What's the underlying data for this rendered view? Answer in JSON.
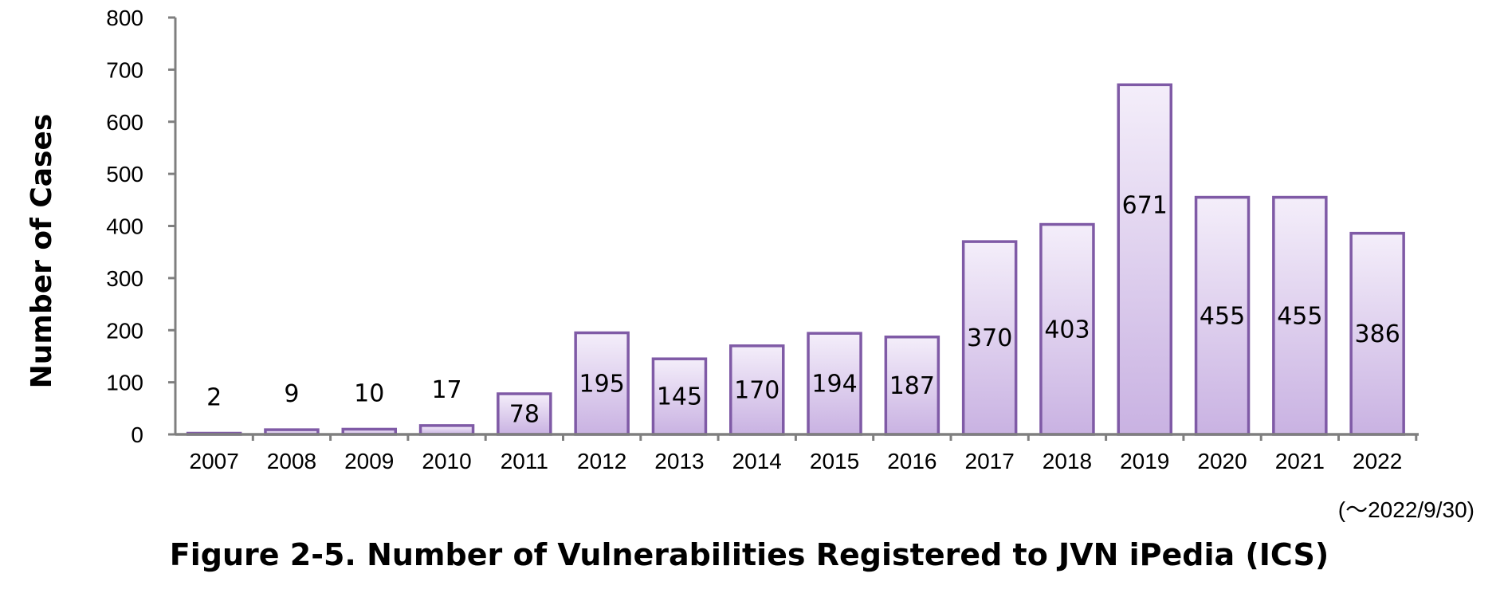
{
  "chart_data": {
    "type": "bar",
    "categories": [
      "2007",
      "2008",
      "2009",
      "2010",
      "2011",
      "2012",
      "2013",
      "2014",
      "2015",
      "2016",
      "2017",
      "2018",
      "2019",
      "2020",
      "2021",
      "2022"
    ],
    "values": [
      2,
      9,
      10,
      17,
      78,
      195,
      145,
      170,
      194,
      187,
      370,
      403,
      671,
      455,
      455,
      386
    ],
    "data_labels": [
      "2",
      "9",
      "10",
      "17",
      "78",
      "195",
      "145",
      "170",
      "194",
      "187",
      "370",
      "403",
      "671",
      "455",
      "455",
      "386"
    ],
    "ylabel": "Number of Cases",
    "xlabel": "",
    "ylim": [
      0,
      800
    ],
    "yticks": [
      "0",
      "100",
      "200",
      "300",
      "400",
      "500",
      "600",
      "700",
      "800"
    ],
    "grid": false,
    "legend": "none",
    "note": "(～2022/9/30)",
    "caption": "Figure 2-5. Number of Vulnerabilities Registered to JVN iPedia (ICS)",
    "colors": {
      "bar_fill_top": "#f4eefa",
      "bar_fill_bottom": "#c9b2e2",
      "bar_stroke": "#7f5aa6",
      "axis": "#7f7f7f"
    }
  }
}
